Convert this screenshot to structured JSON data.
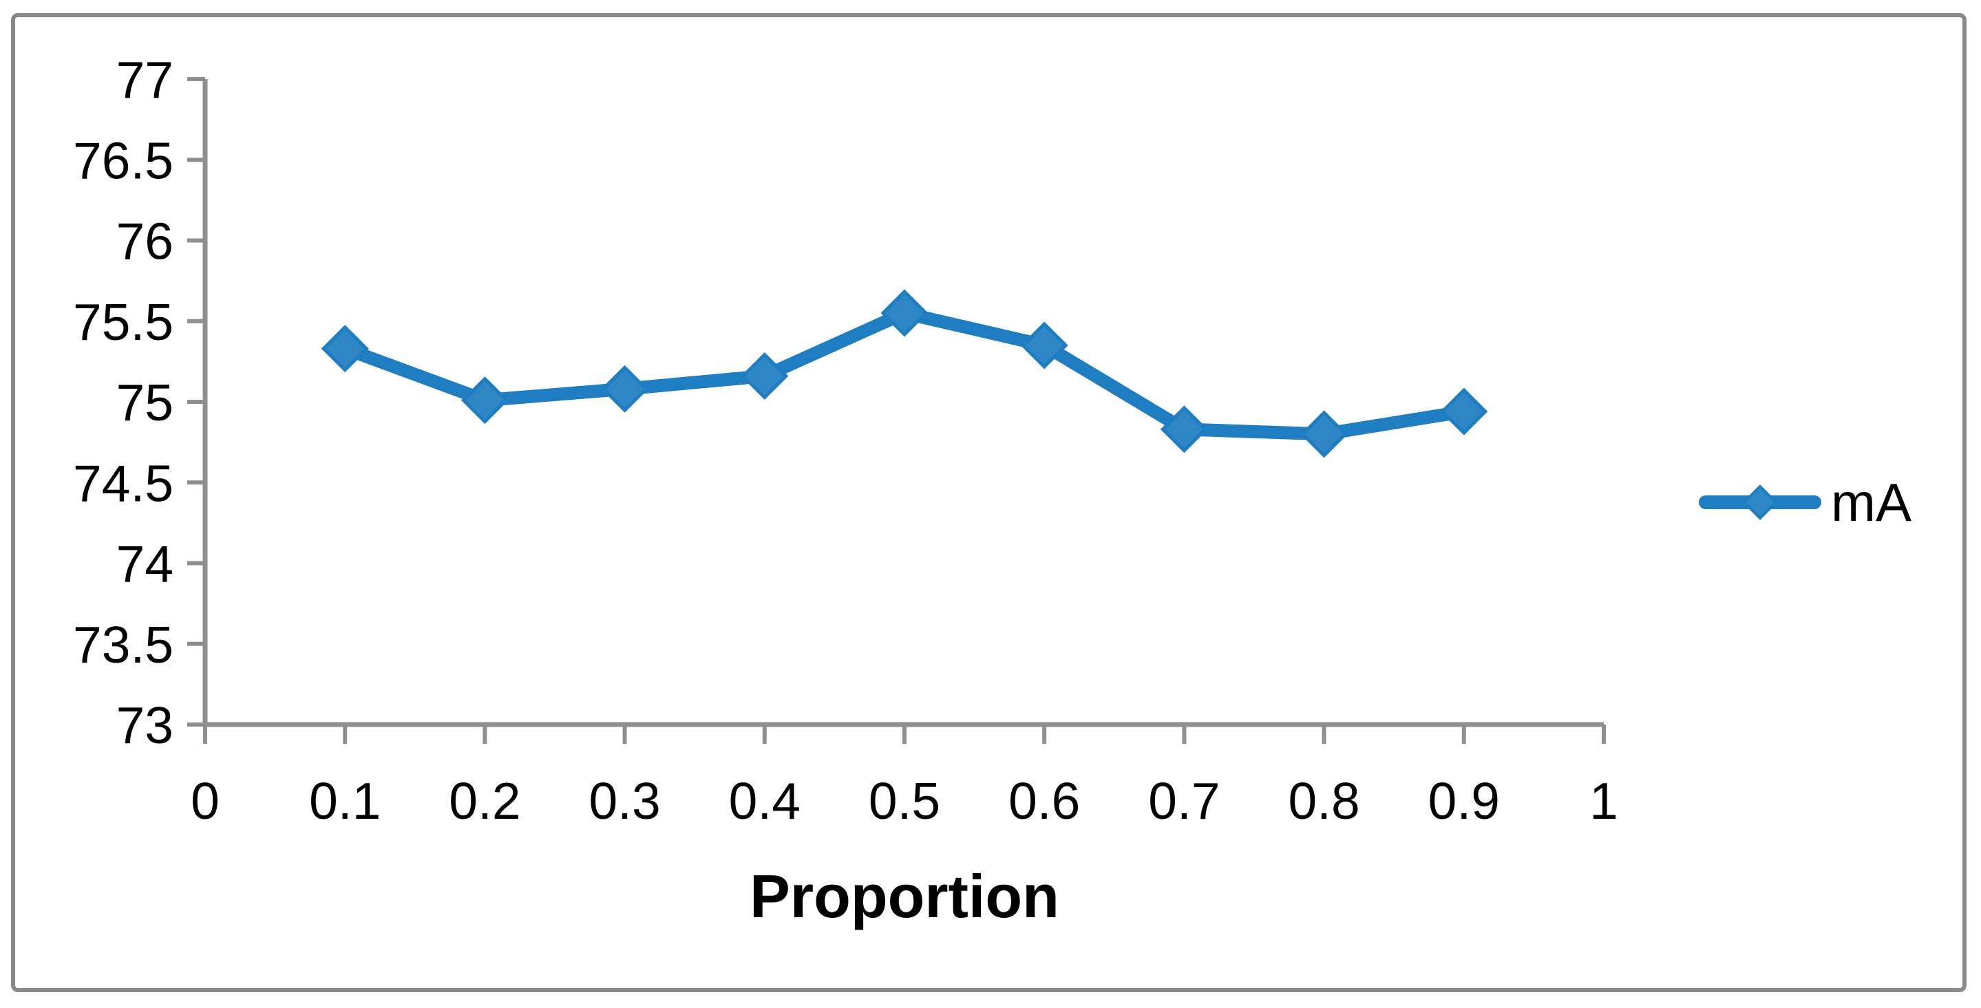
{
  "chart": {
    "background": "#ffffff",
    "frame_border_color": "#8a8a8a",
    "axis_color": "#8f8f8f",
    "tick_label_color": "#000000"
  },
  "chart_data": {
    "type": "line",
    "title": "",
    "xlabel": "Proportion",
    "ylabel": "",
    "xlim": [
      0,
      1
    ],
    "ylim": [
      73,
      77
    ],
    "grid": false,
    "legend_position": "right",
    "x_ticks": [
      "0",
      "0.1",
      "0.2",
      "0.3",
      "0.4",
      "0.5",
      "0.6",
      "0.7",
      "0.8",
      "0.9",
      "1"
    ],
    "y_ticks": [
      "73",
      "73.5",
      "74",
      "74.5",
      "75",
      "75.5",
      "76",
      "76.5",
      "77"
    ],
    "series": [
      {
        "name": "mA",
        "color": "#1f7dc1",
        "marker": "diamond",
        "marker_fill": "#2e86c4",
        "x": [
          0.1,
          0.2,
          0.3,
          0.4,
          0.5,
          0.6,
          0.7,
          0.8,
          0.9
        ],
        "values": [
          75.33,
          75.01,
          75.08,
          75.16,
          75.55,
          75.35,
          74.83,
          74.8,
          74.94
        ]
      }
    ]
  }
}
